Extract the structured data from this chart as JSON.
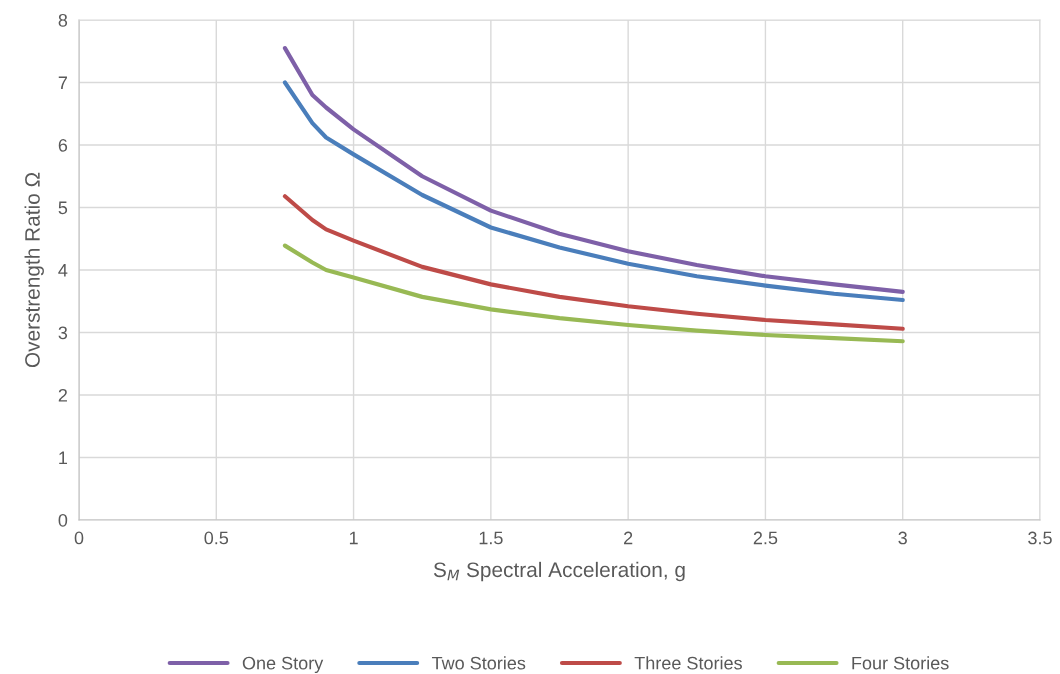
{
  "chart_data": {
    "type": "line",
    "xlabel": "S$_{M}$ Spectral Acceleration, g",
    "ylabel": "Overstrength Ratio Ω",
    "x": [
      0.75,
      0.85,
      0.9,
      1.0,
      1.25,
      1.5,
      1.75,
      2.0,
      2.25,
      2.5,
      2.75,
      3.0
    ],
    "series": [
      {
        "name": "One Story",
        "color": "#7e60a8",
        "values": [
          7.55,
          6.8,
          6.6,
          6.25,
          5.5,
          4.95,
          4.58,
          4.3,
          4.08,
          3.9,
          3.77,
          3.65
        ]
      },
      {
        "name": "Two Stories",
        "color": "#4a7ebb",
        "values": [
          7.0,
          6.35,
          6.12,
          5.85,
          5.2,
          4.68,
          4.36,
          4.1,
          3.9,
          3.75,
          3.62,
          3.52
        ]
      },
      {
        "name": "Three Stories",
        "color": "#be4b48",
        "values": [
          5.18,
          4.8,
          4.65,
          4.47,
          4.05,
          3.77,
          3.57,
          3.42,
          3.3,
          3.2,
          3.13,
          3.06
        ]
      },
      {
        "name": "Four Stories",
        "color": "#98b954",
        "values": [
          4.39,
          4.12,
          4.0,
          3.88,
          3.57,
          3.37,
          3.23,
          3.12,
          3.03,
          2.96,
          2.91,
          2.86
        ]
      }
    ],
    "xlim": [
      0,
      3.5
    ],
    "xticks": [
      0,
      {
        "value": 0.5,
        "label": "0.5"
      },
      1,
      {
        "value": 1.5,
        "label": "1.5"
      },
      2,
      {
        "value": 2.5,
        "label": "2.5"
      },
      3,
      {
        "value": 3.5,
        "label": "3.5"
      }
    ],
    "ylim": [
      0,
      8
    ],
    "yticks": [
      0,
      1,
      2,
      3,
      4,
      5,
      6,
      7,
      8
    ],
    "grid": true,
    "legend": "bottom",
    "marker": "none",
    "line_style": "solid"
  }
}
